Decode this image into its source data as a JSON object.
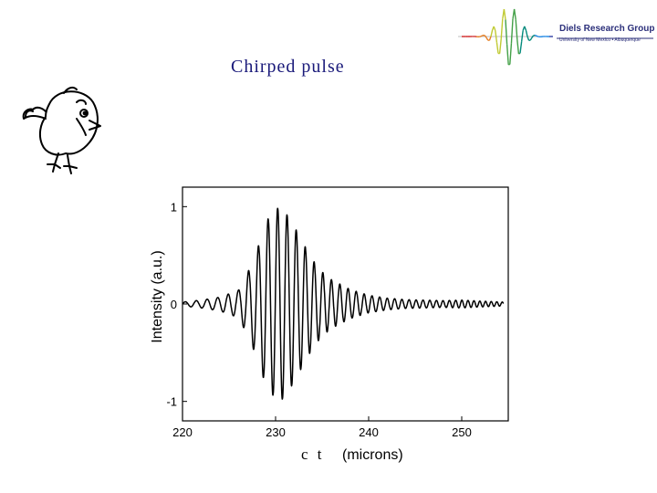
{
  "slide": {
    "title": "Chirped pulse"
  },
  "logo": {
    "name": "Diels Research Group",
    "subtitle": "University of New Mexico • Albuquerque"
  },
  "chart_data": {
    "type": "line",
    "title": "Chirped pulse",
    "xlabel_symbol": "c t",
    "xlabel": "(microns)",
    "ylabel": "Intensity (a.u.)",
    "xlim": [
      220,
      255
    ],
    "ylim": [
      -1.2,
      1.2
    ],
    "xticks": [
      220,
      230,
      240,
      250
    ],
    "yticks": [
      1,
      0,
      -1
    ],
    "grid": false,
    "series": [
      {
        "color": "#000000",
        "x": [
          220,
          222,
          224,
          226,
          227,
          228,
          229,
          230,
          230.5,
          231,
          232,
          233,
          234,
          235,
          236,
          238,
          240,
          242,
          244,
          246,
          248,
          250,
          252,
          254.5
        ],
        "env": [
          0.02,
          0.04,
          0.07,
          0.14,
          0.32,
          0.55,
          0.85,
          0.97,
          1.0,
          0.95,
          0.8,
          0.62,
          0.45,
          0.33,
          0.25,
          0.15,
          0.09,
          0.06,
          0.045,
          0.04,
          0.035,
          0.04,
          0.03,
          0.02
        ]
      }
    ]
  }
}
